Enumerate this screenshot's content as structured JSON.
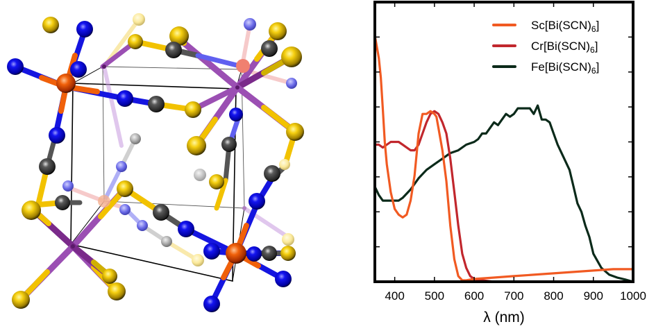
{
  "figure": {
    "left_panel": {
      "description": "Ball-and-stick crystal structure of M[Bi(SCN)6] unit cell",
      "atom_colors": {
        "M": "#e8540c",
        "Bi": "#9b4fb3",
        "S": "#f2c200",
        "C": "#4a4a4a",
        "N": "#1010e0"
      },
      "unit_cell_edge_color": "#000000"
    }
  },
  "chart_data": {
    "type": "line",
    "title": "",
    "xlabel": "λ (nm)",
    "ylabel": "",
    "xlim": [
      350,
      1000
    ],
    "ylim": [
      0,
      1
    ],
    "xticks": [
      400,
      500,
      600,
      700,
      800,
      900,
      1000
    ],
    "xtick_labels": [
      "400",
      "500",
      "600",
      "700",
      "800",
      "900",
      "1000"
    ],
    "yticks": [
      0.125,
      0.25,
      0.375,
      0.5,
      0.625,
      0.75,
      0.875
    ],
    "ytick_labels": [],
    "grid": false,
    "legend_position": "upper right",
    "series": [
      {
        "name": "Sc[Bi(SCN)6]",
        "label_main": "Sc[Bi(SCN)",
        "label_sub": "6",
        "label_end": "]",
        "color": "#f15a22",
        "x": [
          350,
          355,
          360,
          365,
          370,
          375,
          380,
          390,
          400,
          410,
          420,
          430,
          440,
          450,
          460,
          470,
          480,
          490,
          500,
          505,
          510,
          520,
          530,
          540,
          550,
          560,
          570,
          580,
          600,
          650,
          700,
          750,
          800,
          850,
          900,
          950,
          1000
        ],
        "y": [
          0.88,
          0.84,
          0.8,
          0.73,
          0.62,
          0.5,
          0.42,
          0.32,
          0.26,
          0.24,
          0.23,
          0.24,
          0.29,
          0.38,
          0.53,
          0.6,
          0.6,
          0.61,
          0.6,
          0.59,
          0.55,
          0.47,
          0.36,
          0.2,
          0.08,
          0.02,
          0.005,
          0.005,
          0.01,
          0.015,
          0.02,
          0.025,
          0.03,
          0.035,
          0.04,
          0.045,
          0.045
        ]
      },
      {
        "name": "Cr[Bi(SCN)6]",
        "label_main": "Cr[Bi(SCN)",
        "label_sub": "6",
        "label_end": "]",
        "color": "#c1272d",
        "x": [
          350,
          360,
          370,
          380,
          390,
          400,
          410,
          420,
          430,
          440,
          450,
          460,
          470,
          480,
          490,
          500,
          510,
          520,
          530,
          540,
          550,
          560,
          570,
          580,
          590,
          600,
          620,
          650,
          700,
          800,
          900,
          1000
        ],
        "y": [
          0.49,
          0.49,
          0.48,
          0.49,
          0.5,
          0.5,
          0.5,
          0.49,
          0.48,
          0.47,
          0.47,
          0.49,
          0.53,
          0.57,
          0.6,
          0.61,
          0.6,
          0.57,
          0.53,
          0.44,
          0.32,
          0.2,
          0.1,
          0.05,
          0.02,
          0.01,
          0.005,
          0.0,
          0.0,
          0.0,
          0.0,
          0.0
        ]
      },
      {
        "name": "Fe[Bi(SCN)6]",
        "label_main": "Fe[Bi(SCN)",
        "label_sub": "6",
        "label_end": "]",
        "color": "#0b2a1a",
        "x": [
          350,
          360,
          370,
          380,
          395,
          410,
          420,
          440,
          460,
          480,
          500,
          520,
          540,
          560,
          580,
          600,
          610,
          620,
          630,
          640,
          650,
          660,
          670,
          680,
          690,
          700,
          710,
          720,
          730,
          740,
          750,
          760,
          770,
          780,
          790,
          800,
          810,
          820,
          830,
          840,
          850,
          860,
          870,
          880,
          890,
          900,
          920,
          940,
          960,
          980,
          1000
        ],
        "y": [
          0.34,
          0.31,
          0.29,
          0.29,
          0.29,
          0.29,
          0.3,
          0.33,
          0.37,
          0.4,
          0.42,
          0.44,
          0.46,
          0.47,
          0.49,
          0.5,
          0.51,
          0.53,
          0.53,
          0.55,
          0.57,
          0.56,
          0.58,
          0.6,
          0.59,
          0.6,
          0.62,
          0.62,
          0.62,
          0.62,
          0.6,
          0.63,
          0.58,
          0.58,
          0.57,
          0.53,
          0.49,
          0.46,
          0.43,
          0.4,
          0.34,
          0.28,
          0.25,
          0.2,
          0.16,
          0.1,
          0.05,
          0.025,
          0.015,
          0.008,
          0.0
        ]
      }
    ]
  }
}
